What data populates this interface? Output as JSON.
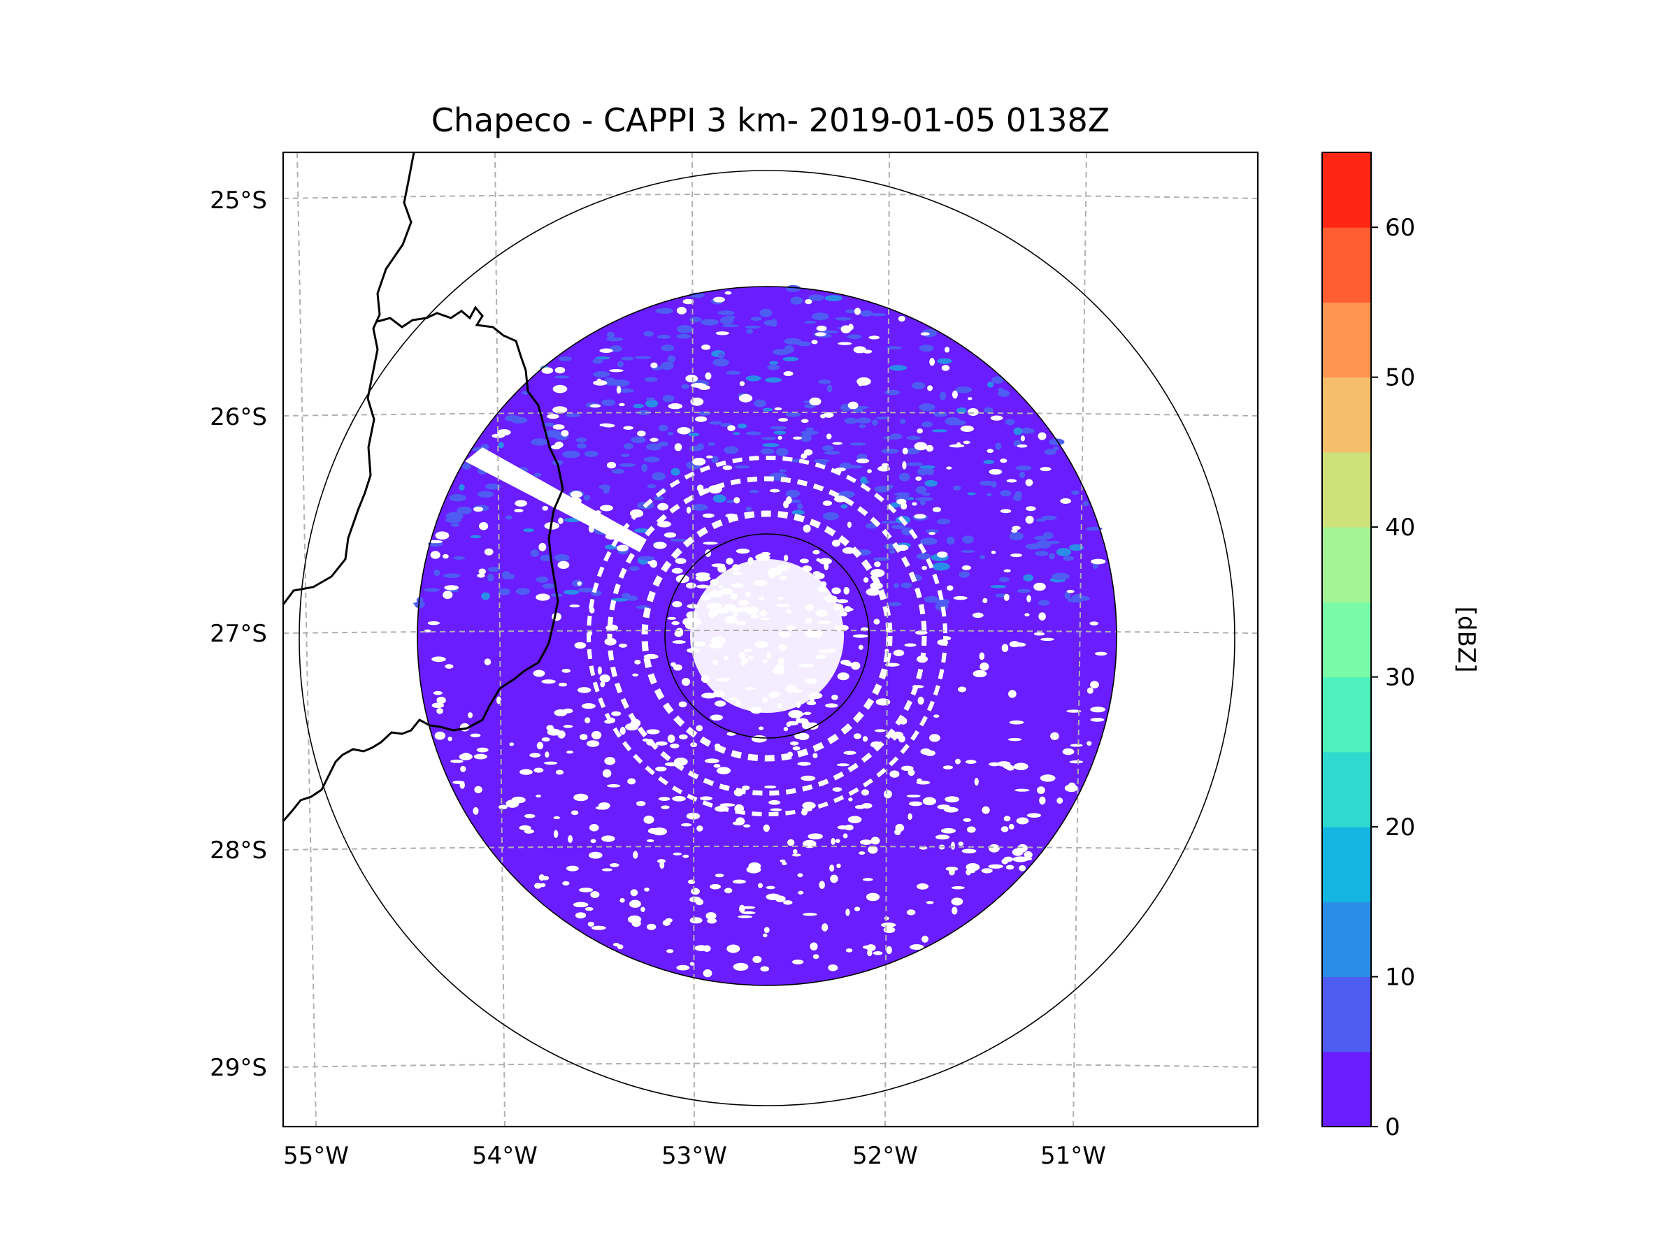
{
  "title": "Chapeco - CAPPI 3 km- 2019-01-05 0138Z",
  "map": {
    "lat_labels": [
      "25°S",
      "26°S",
      "27°S",
      "28°S",
      "29°S"
    ],
    "lon_labels": [
      "55°W",
      "54°W",
      "53°W",
      "52°W",
      "51°W"
    ],
    "center": {
      "lon": -52.6,
      "lat": -27.0
    },
    "range_rings_deg": [
      0.5,
      1.8,
      2.15
    ],
    "data_radius_deg": 1.8
  },
  "colorbar": {
    "label": "[dBZ]",
    "ticks": [
      "0",
      "10",
      "20",
      "30",
      "40",
      "50",
      "60"
    ],
    "vmin": 0,
    "vmax": 65,
    "step": 5,
    "colors": [
      "#6a1dff",
      "#4e5cf2",
      "#2a8de6",
      "#12b6e0",
      "#2ed9d0",
      "#4ef0bc",
      "#78faa6",
      "#a2f495",
      "#cee07a",
      "#f4be6c",
      "#ff9550",
      "#ff5e32",
      "#ff2614"
    ]
  },
  "colors": {
    "grid": "#b0b0b0",
    "coast": "#000000",
    "frame": "#000000"
  }
}
